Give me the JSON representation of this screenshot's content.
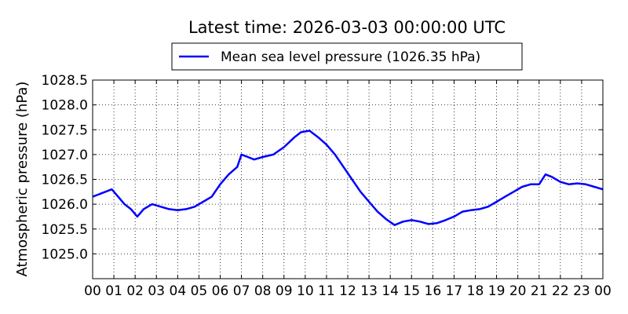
{
  "chart_data": {
    "type": "line",
    "title": "Latest time: 2026-03-03 00:00:00 UTC",
    "ylabel": "Atmospheric pressure (hPa)",
    "xlabel": "",
    "xlim": [
      0,
      24
    ],
    "ylim": [
      1024.5,
      1028.5
    ],
    "x_ticks": [
      "00",
      "01",
      "02",
      "03",
      "04",
      "05",
      "06",
      "07",
      "08",
      "09",
      "10",
      "11",
      "12",
      "13",
      "14",
      "15",
      "16",
      "17",
      "18",
      "19",
      "20",
      "21",
      "22",
      "23",
      "00"
    ],
    "y_ticks": [
      "1025.0",
      "1025.5",
      "1026.0",
      "1026.5",
      "1027.0",
      "1027.5",
      "1028.0",
      "1028.5"
    ],
    "grid": true,
    "legend_position": "top",
    "series": [
      {
        "name": "Mean sea level pressure (1026.35 hPa)",
        "color": "#0000ff",
        "x": [
          0,
          0.3,
          0.6,
          0.9,
          1.2,
          1.5,
          1.8,
          2.1,
          2.4,
          2.8,
          3.2,
          3.6,
          4.0,
          4.4,
          4.8,
          5.2,
          5.6,
          6.0,
          6.4,
          6.8,
          7.0,
          7.3,
          7.6,
          8.0,
          8.5,
          9.0,
          9.5,
          9.8,
          10.2,
          10.6,
          11.0,
          11.4,
          11.8,
          12.2,
          12.6,
          13.0,
          13.4,
          13.8,
          14.2,
          14.6,
          15.0,
          15.4,
          15.8,
          16.2,
          16.6,
          17.0,
          17.4,
          17.8,
          18.2,
          18.6,
          19.0,
          19.4,
          19.8,
          20.2,
          20.6,
          21.0,
          21.3,
          21.6,
          22.0,
          22.4,
          22.8,
          23.2,
          23.6,
          24.0
        ],
        "values": [
          1026.15,
          1026.2,
          1026.25,
          1026.3,
          1026.15,
          1026.0,
          1025.9,
          1025.75,
          1025.9,
          1026.0,
          1025.95,
          1025.9,
          1025.88,
          1025.9,
          1025.95,
          1026.05,
          1026.15,
          1026.4,
          1026.6,
          1026.75,
          1027.0,
          1026.95,
          1026.9,
          1026.95,
          1027.0,
          1027.15,
          1027.35,
          1027.45,
          1027.48,
          1027.35,
          1027.2,
          1027.0,
          1026.75,
          1026.5,
          1026.25,
          1026.05,
          1025.85,
          1025.7,
          1025.58,
          1025.65,
          1025.68,
          1025.65,
          1025.6,
          1025.62,
          1025.68,
          1025.75,
          1025.85,
          1025.88,
          1025.9,
          1025.95,
          1026.05,
          1026.15,
          1026.25,
          1026.35,
          1026.4,
          1026.4,
          1026.6,
          1026.55,
          1026.45,
          1026.4,
          1026.42,
          1026.4,
          1026.35,
          1026.3
        ]
      }
    ]
  }
}
